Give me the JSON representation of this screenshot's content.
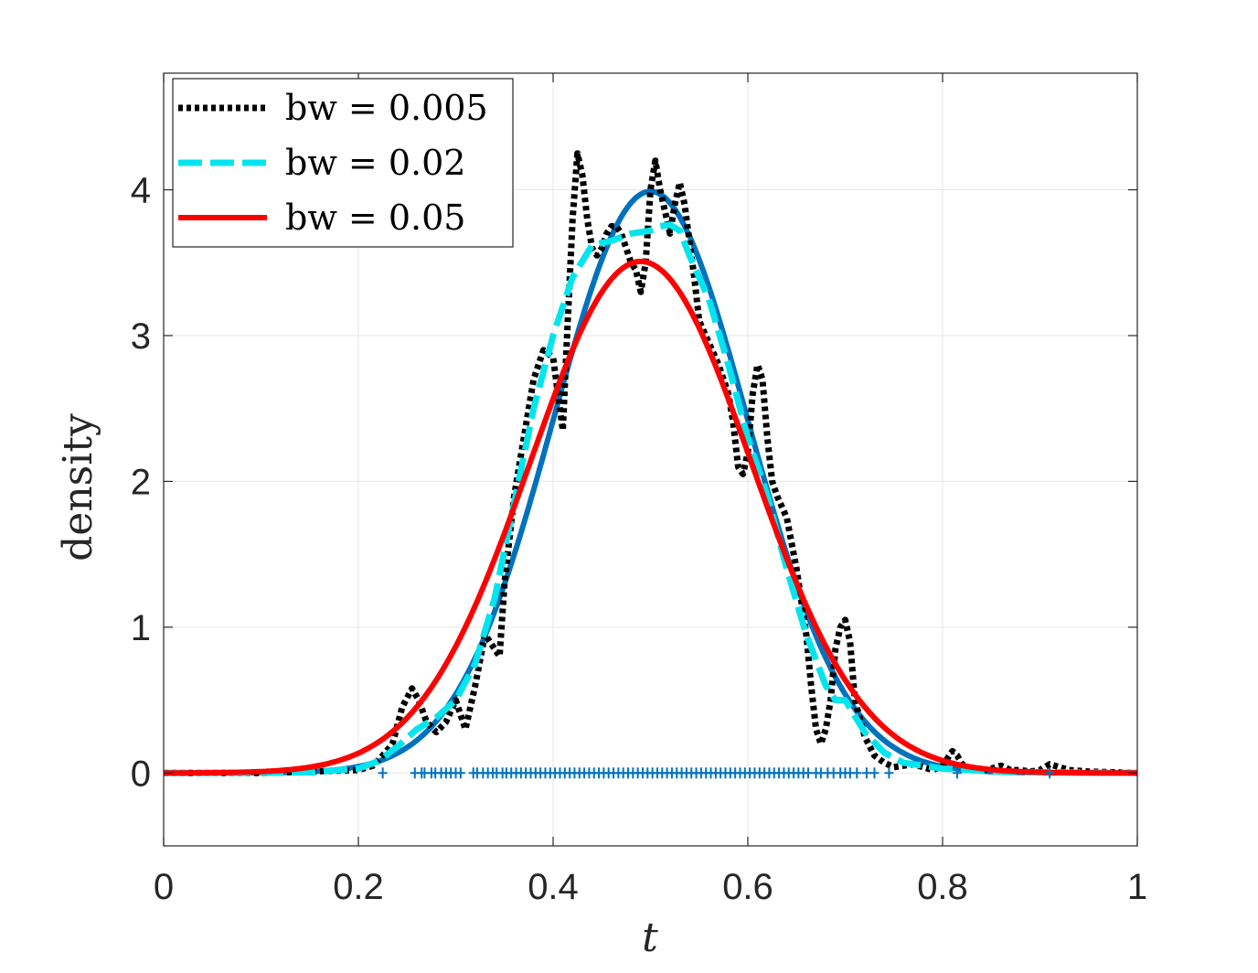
{
  "chart_data": {
    "type": "line",
    "title": "",
    "xlabel": "t",
    "ylabel": "density",
    "xlim": [
      0,
      1
    ],
    "ylim": [
      -0.5,
      4.8
    ],
    "xticks": [
      0,
      0.2,
      0.4,
      0.6,
      0.8,
      1
    ],
    "xtick_labels": [
      "0",
      "0.2",
      "0.4",
      "0.6",
      "0.8",
      "1"
    ],
    "yticks": [
      0,
      1,
      2,
      3,
      4
    ],
    "ytick_labels": [
      "0",
      "1",
      "2",
      "3",
      "4"
    ],
    "grid": true,
    "legend_position": "top-left",
    "legend": [
      "bw = 0.005",
      "bw = 0.02",
      "bw = 0.05"
    ],
    "series": [
      {
        "name": "true density",
        "in_legend": false,
        "color": "#0072BD",
        "style": "solid",
        "distribution": {
          "type": "normal",
          "mean": 0.5,
          "sd": 0.1
        }
      },
      {
        "name": "bw = 0.005",
        "in_legend": true,
        "color": "#000000",
        "style": "dotted",
        "x": [
          0,
          0.1,
          0.15,
          0.2,
          0.215,
          0.225,
          0.235,
          0.245,
          0.255,
          0.262,
          0.27,
          0.28,
          0.29,
          0.3,
          0.31,
          0.32,
          0.33,
          0.34,
          0.345,
          0.35,
          0.36,
          0.37,
          0.38,
          0.39,
          0.4,
          0.405,
          0.41,
          0.415,
          0.42,
          0.425,
          0.43,
          0.435,
          0.44,
          0.445,
          0.45,
          0.455,
          0.46,
          0.465,
          0.47,
          0.475,
          0.48,
          0.485,
          0.49,
          0.495,
          0.5,
          0.505,
          0.51,
          0.515,
          0.52,
          0.525,
          0.53,
          0.535,
          0.54,
          0.545,
          0.55,
          0.56,
          0.57,
          0.58,
          0.585,
          0.59,
          0.595,
          0.6,
          0.605,
          0.61,
          0.615,
          0.62,
          0.625,
          0.63,
          0.64,
          0.65,
          0.66,
          0.665,
          0.67,
          0.675,
          0.68,
          0.685,
          0.69,
          0.695,
          0.7,
          0.705,
          0.71,
          0.72,
          0.73,
          0.74,
          0.75,
          0.76,
          0.77,
          0.78,
          0.79,
          0.8,
          0.81,
          0.815,
          0.82,
          0.83,
          0.84,
          0.85,
          0.86,
          0.87,
          0.88,
          0.89,
          0.9,
          0.91,
          0.92,
          0.93,
          0.95,
          1.0
        ],
        "values": [
          0,
          0,
          0.01,
          0.02,
          0.05,
          0.12,
          0.2,
          0.45,
          0.58,
          0.5,
          0.35,
          0.28,
          0.35,
          0.5,
          0.3,
          0.6,
          0.95,
          0.85,
          0.8,
          1.3,
          1.9,
          2.3,
          2.7,
          2.9,
          2.85,
          2.6,
          2.35,
          3.1,
          3.8,
          4.25,
          4.1,
          3.8,
          3.6,
          3.55,
          3.6,
          3.7,
          3.75,
          3.75,
          3.7,
          3.6,
          3.5,
          3.45,
          3.3,
          3.5,
          4.0,
          4.2,
          4.0,
          3.85,
          3.7,
          3.9,
          4.05,
          3.9,
          3.65,
          3.4,
          3.1,
          2.95,
          2.8,
          2.6,
          2.4,
          2.1,
          2.05,
          2.2,
          2.6,
          2.8,
          2.7,
          2.3,
          2.0,
          1.9,
          1.75,
          1.4,
          0.95,
          0.6,
          0.3,
          0.2,
          0.3,
          0.5,
          0.85,
          1.0,
          1.05,
          0.9,
          0.5,
          0.25,
          0.12,
          0.07,
          0.04,
          0.05,
          0.06,
          0.04,
          0.02,
          0.05,
          0.15,
          0.12,
          0.06,
          0.02,
          0.02,
          0.03,
          0.05,
          0.02,
          0.02,
          0.01,
          0.02,
          0.06,
          0.04,
          0.02,
          0.01,
          0
        ]
      },
      {
        "name": "bw = 0.02",
        "in_legend": true,
        "color": "#00E5EE",
        "style": "dashed",
        "x": [
          0,
          0.1,
          0.15,
          0.2,
          0.22,
          0.24,
          0.26,
          0.28,
          0.3,
          0.32,
          0.34,
          0.36,
          0.38,
          0.4,
          0.42,
          0.44,
          0.46,
          0.48,
          0.5,
          0.51,
          0.52,
          0.53,
          0.54,
          0.56,
          0.58,
          0.6,
          0.62,
          0.64,
          0.66,
          0.68,
          0.69,
          0.7,
          0.72,
          0.74,
          0.76,
          0.8,
          0.85,
          0.9,
          1.0
        ],
        "values": [
          0,
          0.001,
          0.005,
          0.03,
          0.08,
          0.18,
          0.3,
          0.38,
          0.5,
          0.75,
          1.2,
          1.85,
          2.5,
          3.0,
          3.4,
          3.62,
          3.65,
          3.7,
          3.72,
          3.75,
          3.76,
          3.72,
          3.55,
          3.25,
          2.8,
          2.3,
          1.9,
          1.4,
          0.95,
          0.6,
          0.5,
          0.5,
          0.28,
          0.14,
          0.07,
          0.03,
          0.012,
          0.004,
          0
        ]
      },
      {
        "name": "bw = 0.05",
        "in_legend": true,
        "color": "#FF0000",
        "style": "solid",
        "distribution": {
          "type": "normal",
          "mean": 0.49,
          "sd": 0.1137
        }
      }
    ],
    "rug": {
      "name": "samples",
      "color": "#0072BD",
      "marker": "+",
      "y": 0,
      "x": [
        0.225,
        0.258,
        0.265,
        0.268,
        0.275,
        0.279,
        0.285,
        0.29,
        0.295,
        0.3,
        0.305,
        0.318,
        0.322,
        0.328,
        0.333,
        0.338,
        0.342,
        0.348,
        0.352,
        0.357,
        0.362,
        0.367,
        0.372,
        0.377,
        0.382,
        0.387,
        0.392,
        0.397,
        0.402,
        0.407,
        0.412,
        0.417,
        0.422,
        0.427,
        0.432,
        0.437,
        0.442,
        0.447,
        0.452,
        0.457,
        0.462,
        0.467,
        0.472,
        0.477,
        0.482,
        0.487,
        0.492,
        0.497,
        0.502,
        0.507,
        0.512,
        0.517,
        0.522,
        0.527,
        0.532,
        0.537,
        0.542,
        0.547,
        0.552,
        0.557,
        0.562,
        0.567,
        0.572,
        0.577,
        0.582,
        0.587,
        0.592,
        0.597,
        0.602,
        0.607,
        0.612,
        0.617,
        0.622,
        0.627,
        0.632,
        0.637,
        0.642,
        0.647,
        0.652,
        0.657,
        0.662,
        0.67,
        0.675,
        0.682,
        0.688,
        0.695,
        0.7,
        0.705,
        0.712,
        0.722,
        0.73,
        0.745,
        0.815,
        0.91
      ]
    }
  }
}
